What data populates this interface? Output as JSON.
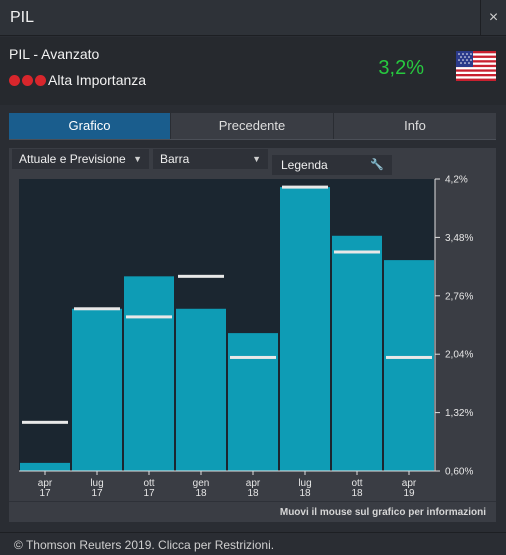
{
  "window": {
    "title": "PIL",
    "close_glyph": "×"
  },
  "indicator": {
    "name": "PIL - Avanzato",
    "importance_label": "Alta Importanza",
    "importance_color": "#d8262c",
    "value": "3,2%",
    "value_color": "#27c93f",
    "flag_icon": "us-flag-icon"
  },
  "tabs": [
    {
      "label": "Grafico",
      "active": true
    },
    {
      "label": "Precedente",
      "active": false
    },
    {
      "label": "Info",
      "active": false
    }
  ],
  "controls": {
    "mode_select": "Attuale e Previsione",
    "type_select": "Barra",
    "legend_button": "Legenda",
    "dropdown_glyph": "▼",
    "legend_glyph": "🔧"
  },
  "chart_data": {
    "type": "bar",
    "categories": [
      [
        "apr",
        "17"
      ],
      [
        "lug",
        "17"
      ],
      [
        "ott",
        "17"
      ],
      [
        "gen",
        "18"
      ],
      [
        "apr",
        "18"
      ],
      [
        "lug",
        "18"
      ],
      [
        "ott",
        "18"
      ],
      [
        "apr",
        "19"
      ]
    ],
    "series": [
      {
        "name": "Attuale",
        "values": [
          0.7,
          2.6,
          3.0,
          2.6,
          2.3,
          4.1,
          3.5,
          3.2
        ]
      },
      {
        "name": "Previsione",
        "values": [
          1.2,
          2.6,
          2.5,
          3.0,
          2.0,
          4.1,
          3.3,
          2.0
        ]
      }
    ],
    "y_ticks": [
      "4,2%",
      "3,48%",
      "2,76%",
      "2,04%",
      "1,32%",
      "0,60%"
    ],
    "ylim": [
      0.6,
      4.2
    ],
    "bar_color": "#0e9cb5",
    "forecast_color": "#e8e8e8",
    "grid": false
  },
  "hint": "Muovi il mouse sul grafico per informazioni",
  "footer": "© Thomson Reuters 2019. Clicca per Restrizioni."
}
